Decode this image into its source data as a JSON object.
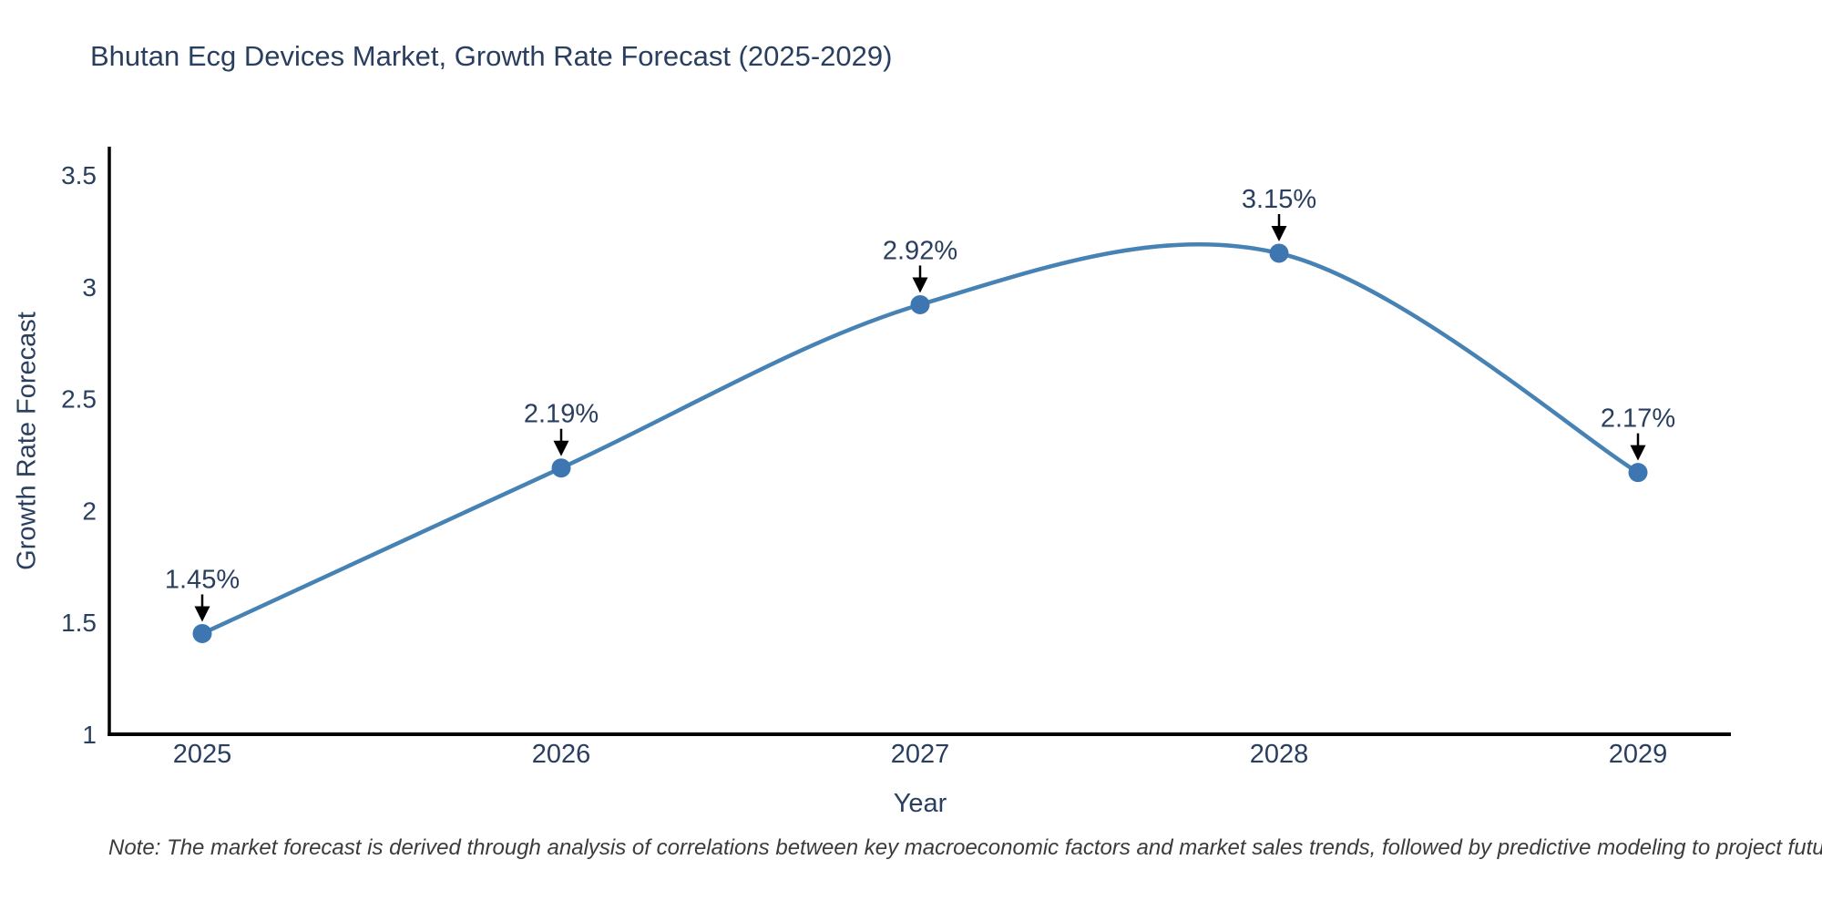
{
  "page": {
    "title": "Bhutan Ecg Devices Market, Growth Rate Forecast (2025-2029)",
    "note": "Note: The market forecast is derived through analysis of correlations between key macroeconomic factors and market sales trends, followed by predictive modeling to project future sales"
  },
  "chart_data": {
    "type": "line",
    "title": "Bhutan Ecg Devices Market, Growth Rate Forecast (2025-2029)",
    "xlabel": "Year",
    "ylabel": "Growth Rate Forecast",
    "categories": [
      "2025",
      "2026",
      "2027",
      "2028",
      "2029"
    ],
    "series": [
      {
        "name": "Growth Rate Forecast",
        "values": [
          1.45,
          2.19,
          2.92,
          3.15,
          2.17
        ]
      }
    ],
    "point_labels": [
      "1.45%",
      "2.19%",
      "2.92%",
      "3.15%",
      "2.17%"
    ],
    "ylim": [
      1,
      3.5
    ],
    "yticks": [
      1,
      1.5,
      2,
      2.5,
      3,
      3.5
    ],
    "line_shape": "spline",
    "grid": false,
    "legend_position": "none",
    "annotation_style": "value label with down arrow to marker"
  },
  "colors": {
    "line": "#4682b4",
    "marker": "#3d76b0",
    "axis": "#000000",
    "title_text": "#2a3f5f",
    "tick_text": "#2a3f5f",
    "annotation_text": "#2a3f5f",
    "arrow": "#000000",
    "note_text": "#3b3b3b",
    "background": "#ffffff"
  }
}
